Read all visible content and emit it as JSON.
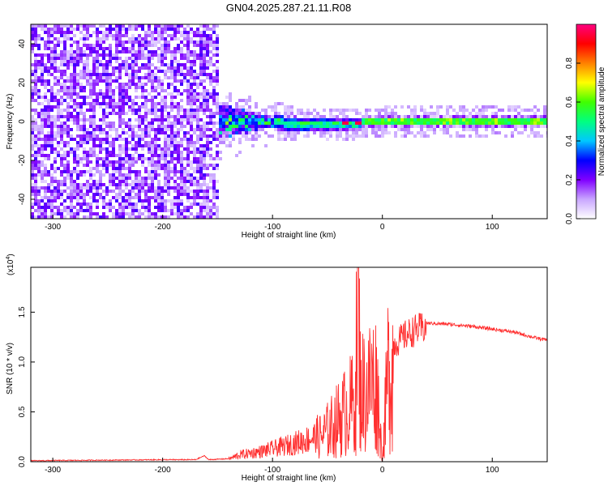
{
  "title": "GN04.2025.287.21.11.R08",
  "chart_data": [
    {
      "type": "heatmap",
      "xlabel": "Height of straight line (km)",
      "ylabel": "Frequency (Hz)",
      "xlim": [
        -320,
        150
      ],
      "ylim": [
        -50,
        50
      ],
      "xticks": [
        -300,
        -200,
        -100,
        0,
        100
      ],
      "yticks": [
        -40,
        -20,
        0,
        20,
        40
      ],
      "colorbar": {
        "label": "Normalized spectral amplitude",
        "range": [
          0,
          1
        ],
        "ticks": [
          0.0,
          0.2,
          0.4,
          0.6,
          0.8
        ],
        "colors": [
          "#ffffff",
          "#c9a6ff",
          "#8000ff",
          "#0000ff",
          "#00c8ff",
          "#00ff80",
          "#40ff00",
          "#ffff00",
          "#ff8000",
          "#ff0000",
          "#ff0080"
        ]
      },
      "features": {
        "noise_region_x": [
          -320,
          -150
        ],
        "signal_band_center_hz": 0,
        "signal_band_width_hz": 3
      }
    },
    {
      "type": "line",
      "xlabel": "Height of straight line (km)",
      "ylabel": "SNR (10 * v/v)",
      "scale_label": "(x10",
      "scale_exponent": "4",
      "xlim": [
        -320,
        150
      ],
      "ylim": [
        0,
        1.95
      ],
      "xticks": [
        -300,
        -200,
        -100,
        0,
        100
      ],
      "yticks": [
        0.0,
        0.5,
        1.0,
        1.5
      ],
      "series": [
        {
          "color": "#ff3030",
          "x": [
            -320,
            -200,
            -170,
            -162,
            -158,
            -140,
            -130,
            -110,
            -90,
            -70,
            -55,
            -45,
            -35,
            -25,
            -22,
            -20,
            -15,
            -10,
            -5,
            0,
            5,
            10,
            20,
            30,
            40,
            60,
            80,
            100,
            120,
            140,
            150
          ],
          "y": [
            0.01,
            0.02,
            0.02,
            0.06,
            0.02,
            0.03,
            0.08,
            0.12,
            0.18,
            0.25,
            0.32,
            0.45,
            0.6,
            0.75,
            1.95,
            0.9,
            0.85,
            1.0,
            0.95,
            0.02,
            1.1,
            1.2,
            1.3,
            1.36,
            1.39,
            1.38,
            1.36,
            1.33,
            1.3,
            1.24,
            1.22
          ]
        }
      ]
    }
  ]
}
